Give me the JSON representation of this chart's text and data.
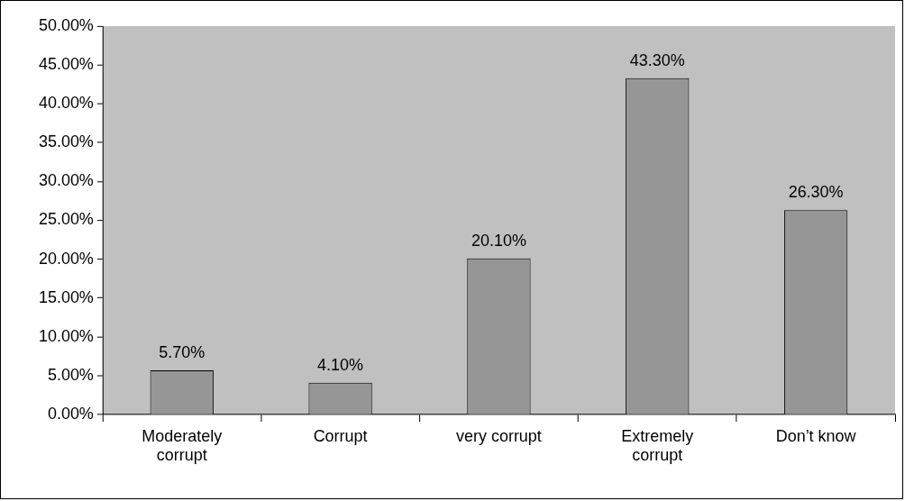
{
  "chart_data": {
    "type": "bar",
    "categories": [
      "Moderately corrupt",
      "Corrupt",
      "very corrupt",
      "Extremely corrupt",
      "Don’t know"
    ],
    "values": [
      5.7,
      4.1,
      20.1,
      43.3,
      26.3
    ],
    "value_labels": [
      "5.70%",
      "4.10%",
      "20.10%",
      "43.30%",
      "26.30%"
    ],
    "color": "#969696",
    "ylim": [
      0,
      50
    ],
    "yticks": [
      {
        "value": 0,
        "label": "0.00%"
      },
      {
        "value": 5,
        "label": "5.00%"
      },
      {
        "value": 10,
        "label": "10.00%"
      },
      {
        "value": 15,
        "label": "15.00%"
      },
      {
        "value": 20,
        "label": "20.00%"
      },
      {
        "value": 25,
        "label": "25.00%"
      },
      {
        "value": 30,
        "label": "30.00%"
      },
      {
        "value": 35,
        "label": "35.00%"
      },
      {
        "value": 40,
        "label": "40.00%"
      },
      {
        "value": 45,
        "label": "45.00%"
      },
      {
        "value": 50,
        "label": "50.00%"
      }
    ],
    "grid": false,
    "legend": false
  }
}
